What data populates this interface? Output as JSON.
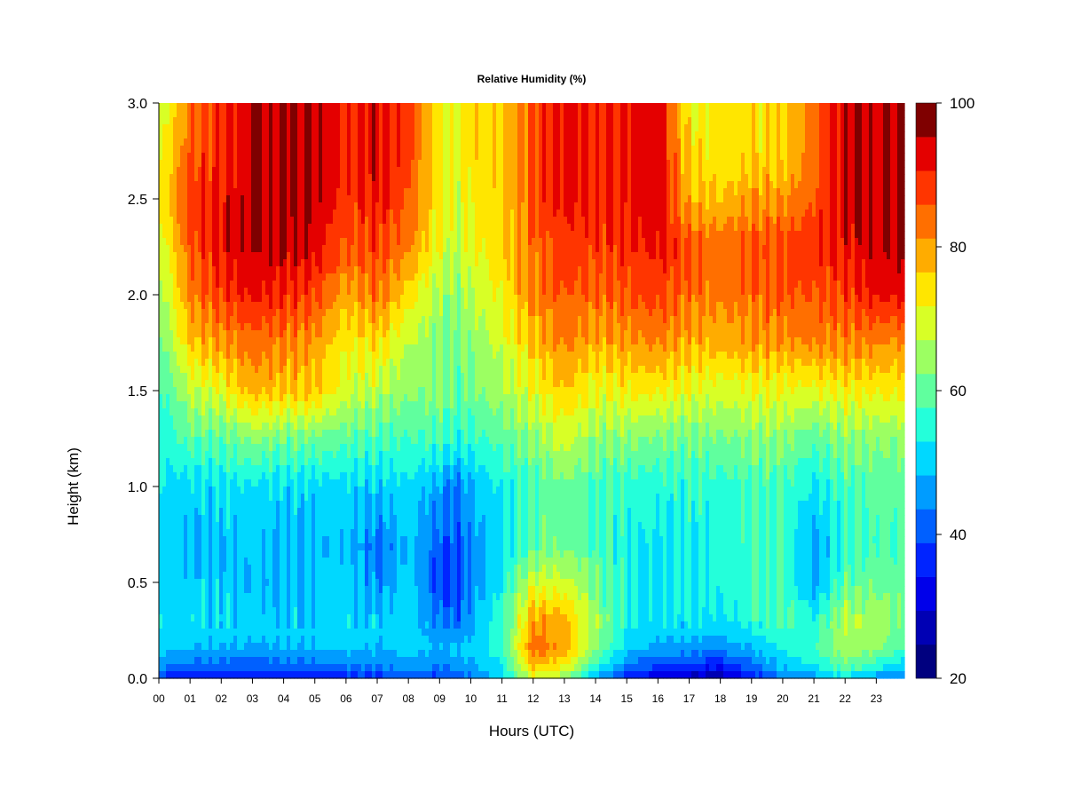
{
  "chart_data": {
    "type": "heatmap",
    "title": "Relative Humidity (%)",
    "xlabel": "Hours (UTC)",
    "ylabel": "Height (km)",
    "x_ticks": [
      "00",
      "01",
      "02",
      "03",
      "04",
      "05",
      "06",
      "07",
      "08",
      "09",
      "10",
      "11",
      "12",
      "13",
      "14",
      "15",
      "16",
      "17",
      "18",
      "19",
      "20",
      "21",
      "22",
      "23"
    ],
    "xlim": [
      0,
      23.9
    ],
    "y_ticks": [
      "0.0",
      "0.5",
      "1.0",
      "1.5",
      "2.0",
      "2.5",
      "3.0"
    ],
    "ylim": [
      0,
      3.0
    ],
    "colorbar": {
      "range": [
        20,
        100
      ],
      "step": 5,
      "tick_labels": [
        "20",
        "40",
        "60",
        "80",
        "100"
      ],
      "colors": [
        "#00007F",
        "#0000B4",
        "#0000EA",
        "#0024FF",
        "#0060FF",
        "#009CFF",
        "#00D8FF",
        "#24FFDA",
        "#60FF9E",
        "#9CFF62",
        "#D8FF26",
        "#FFE600",
        "#FFAC00",
        "#FF6F00",
        "#FF3500",
        "#E40000",
        "#7F0000"
      ]
    },
    "profile_heights_km": [
      0.0,
      0.05,
      0.15,
      0.3,
      0.5,
      0.7,
      1.0,
      1.25,
      1.5,
      1.75,
      2.0,
      2.25,
      2.5,
      2.75,
      3.0
    ],
    "profiles": [
      {
        "hour": 0.0,
        "rh": [
          40,
          45,
          52,
          54,
          52,
          52,
          54,
          56,
          58,
          62,
          66,
          70,
          75,
          72,
          70
        ]
      },
      {
        "hour": 1.0,
        "rh": [
          33,
          42,
          50,
          53,
          52,
          50,
          53,
          62,
          70,
          80,
          86,
          90,
          92,
          90,
          88
        ]
      },
      {
        "hour": 2.0,
        "rh": [
          35,
          42,
          50,
          53,
          52,
          51,
          54,
          62,
          74,
          84,
          92,
          97,
          96,
          94,
          94
        ]
      },
      {
        "hour": 3.0,
        "rh": [
          33,
          40,
          49,
          52,
          50,
          51,
          54,
          66,
          82,
          88,
          96,
          100,
          100,
          100,
          100
        ]
      },
      {
        "hour": 4.0,
        "rh": [
          35,
          42,
          50,
          52,
          50,
          50,
          53,
          64,
          80,
          86,
          94,
          100,
          100,
          100,
          100
        ]
      },
      {
        "hour": 5.0,
        "rh": [
          35,
          42,
          50,
          52,
          51,
          50,
          53,
          64,
          80,
          84,
          92,
          98,
          100,
          100,
          100
        ]
      },
      {
        "hour": 6.0,
        "rh": [
          37,
          44,
          51,
          53,
          52,
          51,
          53,
          62,
          72,
          76,
          82,
          90,
          92,
          94,
          94
        ]
      },
      {
        "hour": 7.0,
        "rh": [
          38,
          44,
          50,
          52,
          46,
          44,
          52,
          60,
          70,
          78,
          88,
          92,
          96,
          98,
          98
        ]
      },
      {
        "hour": 8.0,
        "rh": [
          40,
          46,
          52,
          54,
          52,
          51,
          54,
          60,
          66,
          70,
          78,
          86,
          90,
          92,
          92
        ]
      },
      {
        "hour": 9.0,
        "rh": [
          38,
          44,
          50,
          44,
          40,
          42,
          48,
          60,
          66,
          66,
          68,
          74,
          76,
          76,
          76
        ]
      },
      {
        "hour": 9.5,
        "rh": [
          40,
          46,
          52,
          42,
          40,
          41,
          44,
          58,
          62,
          64,
          66,
          70,
          72,
          74,
          74
        ]
      },
      {
        "hour": 10.0,
        "rh": [
          44,
          48,
          52,
          48,
          46,
          46,
          50,
          58,
          64,
          66,
          70,
          74,
          76,
          78,
          78
        ]
      },
      {
        "hour": 11.0,
        "rh": [
          52,
          54,
          58,
          58,
          56,
          54,
          56,
          62,
          68,
          72,
          76,
          78,
          80,
          80,
          80
        ]
      },
      {
        "hour": 12.0,
        "rh": [
          72,
          80,
          88,
          84,
          72,
          62,
          60,
          66,
          74,
          80,
          86,
          88,
          90,
          90,
          90
        ]
      },
      {
        "hour": 13.0,
        "rh": [
          66,
          74,
          84,
          82,
          72,
          64,
          64,
          72,
          80,
          86,
          90,
          94,
          96,
          96,
          96
        ]
      },
      {
        "hour": 14.0,
        "rh": [
          50,
          56,
          66,
          68,
          64,
          60,
          60,
          66,
          74,
          82,
          88,
          92,
          94,
          94,
          94
        ]
      },
      {
        "hour": 15.0,
        "rh": [
          36,
          44,
          52,
          56,
          56,
          56,
          58,
          66,
          76,
          84,
          90,
          94,
          96,
          96,
          96
        ]
      },
      {
        "hour": 16.0,
        "rh": [
          30,
          38,
          48,
          54,
          54,
          54,
          57,
          64,
          76,
          86,
          92,
          96,
          98,
          98,
          98
        ]
      },
      {
        "hour": 17.0,
        "rh": [
          28,
          36,
          48,
          54,
          56,
          56,
          58,
          64,
          74,
          82,
          88,
          90,
          82,
          78,
          76
        ]
      },
      {
        "hour": 18.0,
        "rh": [
          26,
          34,
          46,
          54,
          56,
          56,
          58,
          64,
          72,
          82,
          86,
          88,
          80,
          76,
          76
        ]
      },
      {
        "hour": 19.0,
        "rh": [
          36,
          42,
          50,
          58,
          58,
          58,
          60,
          66,
          74,
          84,
          88,
          90,
          84,
          78,
          78
        ]
      },
      {
        "hour": 20.0,
        "rh": [
          44,
          50,
          56,
          62,
          60,
          60,
          60,
          66,
          74,
          84,
          90,
          92,
          84,
          78,
          78
        ]
      },
      {
        "hour": 21.0,
        "rh": [
          48,
          54,
          60,
          56,
          48,
          48,
          54,
          62,
          74,
          86,
          90,
          94,
          90,
          88,
          88
        ]
      },
      {
        "hour": 22.0,
        "rh": [
          54,
          62,
          68,
          70,
          62,
          58,
          60,
          66,
          76,
          86,
          92,
          96,
          100,
          100,
          100
        ]
      },
      {
        "hour": 23.0,
        "rh": [
          46,
          56,
          66,
          68,
          64,
          60,
          62,
          66,
          76,
          86,
          96,
          100,
          100,
          100,
          100
        ]
      },
      {
        "hour": 23.9,
        "rh": [
          42,
          50,
          60,
          64,
          62,
          60,
          62,
          66,
          76,
          84,
          96,
          100,
          100,
          100,
          100
        ]
      }
    ]
  }
}
